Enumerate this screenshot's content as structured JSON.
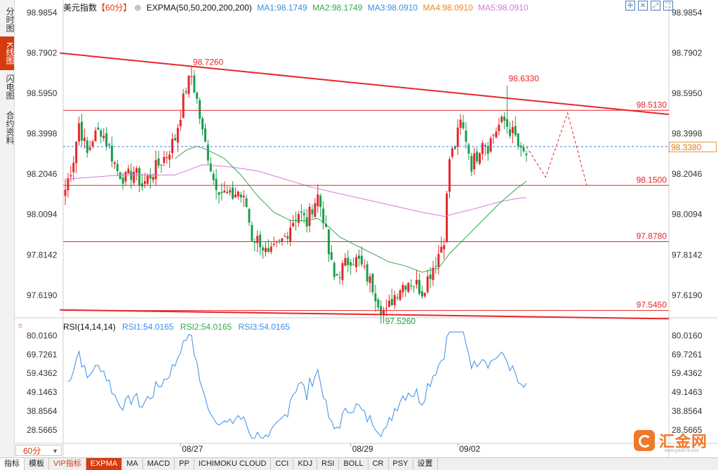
{
  "side_tabs": [
    "分时图",
    "K线图",
    "闪电图",
    "合约资料"
  ],
  "active_side_tab": 1,
  "header": {
    "symbol": "美元指数",
    "period": "【60分】",
    "indicator": "EXPMA(50,50,200,200,200)",
    "ma1": "MA1:98.1749",
    "ma2": "MA2:98.1749",
    "ma3": "MA3:98.0910",
    "ma4": "MA4:98.0910",
    "ma5": "MA5:98.0910"
  },
  "rsi_header": {
    "name": "RSI(14,14,14)",
    "rsi1": "RSI1:54.0165",
    "rsi2": "RSI2:54.0165",
    "rsi3": "RSI3:54.0165"
  },
  "period_selector": "60分",
  "current_price_label": "98.3380",
  "bottom_tabs": [
    "指标",
    "模板",
    "VIP指标",
    "EXPMA",
    "MA",
    "MACD",
    "PP",
    "ICHIMOKU CLOUD",
    "CCI",
    "KDJ",
    "RSI",
    "BOLL",
    "CR",
    "PSY",
    "设置"
  ],
  "active_bottom_tab": 3,
  "logo_text": "汇金网",
  "logo_sub": "www.gold678.com",
  "colors": {
    "up": "#e8262a",
    "down": "#1b9e4b",
    "ema_fast": "#35a853",
    "ema_slow": "#d67ad6",
    "rsi": "#3a8ee6",
    "trend": "#e8262a",
    "dash": "#3a7be0",
    "accent": "#d83a0f"
  },
  "chart_data": [
    {
      "type": "candlestick",
      "title": "美元指数 60分",
      "y_ticks": [
        "98.9854",
        "98.7902",
        "98.5950",
        "98.3998",
        "98.2046",
        "98.0094",
        "97.8142",
        "97.6190"
      ],
      "ylim": [
        97.52,
        98.9854
      ],
      "x_labels": [
        "08/27",
        "08/29",
        "09/02"
      ],
      "hlines": [
        {
          "value": 98.513,
          "label": "98.5130"
        },
        {
          "value": 98.15,
          "label": "98.1500"
        },
        {
          "value": 97.878,
          "label": "97.8780"
        },
        {
          "value": 97.545,
          "label": "97.5450"
        }
      ],
      "annotations": [
        {
          "label": "98.7260",
          "value": 98.726
        },
        {
          "label": "98.6330",
          "value": 98.633
        },
        {
          "label": "97.5260",
          "value": 97.526
        }
      ],
      "current_price": 98.338,
      "waypoints": [
        [
          0,
          98.13
        ],
        [
          3,
          98.28
        ],
        [
          5,
          98.45
        ],
        [
          8,
          98.3
        ],
        [
          10,
          98.38
        ],
        [
          13,
          98.42
        ],
        [
          16,
          98.33
        ],
        [
          19,
          98.22
        ],
        [
          22,
          98.18
        ],
        [
          25,
          98.22
        ],
        [
          28,
          98.15
        ],
        [
          31,
          98.2
        ],
        [
          34,
          98.25
        ],
        [
          37,
          98.3
        ],
        [
          40,
          98.38
        ],
        [
          42,
          98.5
        ],
        [
          44,
          98.62
        ],
        [
          46,
          98.68
        ],
        [
          48,
          98.56
        ],
        [
          50,
          98.4
        ],
        [
          52,
          98.3
        ],
        [
          54,
          98.18
        ],
        [
          57,
          98.12
        ],
        [
          60,
          98.09
        ],
        [
          63,
          98.12
        ],
        [
          66,
          98.05
        ],
        [
          68,
          97.9
        ],
        [
          71,
          97.88
        ],
        [
          74,
          97.8
        ],
        [
          77,
          97.85
        ],
        [
          80,
          97.9
        ],
        [
          82,
          97.96
        ],
        [
          85,
          98.02
        ],
        [
          88,
          97.97
        ],
        [
          90,
          98.05
        ],
        [
          92,
          98.1
        ],
        [
          94,
          98.0
        ],
        [
          96,
          97.82
        ],
        [
          98,
          97.7
        ],
        [
          101,
          97.75
        ],
        [
          104,
          97.8
        ],
        [
          107,
          97.78
        ],
        [
          109,
          97.73
        ],
        [
          112,
          97.66
        ],
        [
          115,
          97.56
        ],
        [
          117,
          97.53
        ],
        [
          119,
          97.6
        ],
        [
          122,
          97.66
        ],
        [
          125,
          97.69
        ],
        [
          128,
          97.67
        ],
        [
          130,
          97.64
        ],
        [
          132,
          97.7
        ],
        [
          134,
          97.76
        ],
        [
          136,
          97.82
        ],
        [
          138,
          97.9
        ],
        [
          140,
          98.28
        ],
        [
          142,
          98.34
        ],
        [
          144,
          98.45
        ],
        [
          146,
          98.38
        ],
        [
          148,
          98.25
        ],
        [
          150,
          98.3
        ],
        [
          152,
          98.38
        ],
        [
          154,
          98.34
        ],
        [
          156,
          98.4
        ],
        [
          158,
          98.44
        ],
        [
          160,
          98.46
        ],
        [
          162,
          98.42
        ],
        [
          164,
          98.38
        ],
        [
          166,
          98.3
        ],
        [
          167,
          98.3
        ],
        [
          168,
          98.3
        ]
      ],
      "candle_count": 169,
      "ema_fast_points": [
        [
          40,
          98.28
        ],
        [
          44,
          98.32
        ],
        [
          48,
          98.34
        ],
        [
          52,
          98.32
        ],
        [
          58,
          98.28
        ],
        [
          64,
          98.2
        ],
        [
          70,
          98.1
        ],
        [
          76,
          98.02
        ],
        [
          82,
          97.98
        ],
        [
          88,
          97.98
        ],
        [
          92,
          97.99
        ],
        [
          96,
          97.95
        ],
        [
          100,
          97.9
        ],
        [
          106,
          97.86
        ],
        [
          112,
          97.82
        ],
        [
          118,
          97.78
        ],
        [
          124,
          97.76
        ],
        [
          130,
          97.73
        ],
        [
          136,
          97.75
        ],
        [
          140,
          97.82
        ],
        [
          146,
          97.9
        ],
        [
          152,
          97.98
        ],
        [
          158,
          98.06
        ],
        [
          164,
          98.13
        ],
        [
          168,
          98.17
        ]
      ],
      "ema_slow_points": [
        [
          0,
          98.18
        ],
        [
          20,
          98.2
        ],
        [
          40,
          98.2
        ],
        [
          46,
          98.23
        ],
        [
          50,
          98.25
        ],
        [
          60,
          98.24
        ],
        [
          70,
          98.22
        ],
        [
          80,
          98.18
        ],
        [
          90,
          98.14
        ],
        [
          100,
          98.11
        ],
        [
          110,
          98.08
        ],
        [
          120,
          98.05
        ],
        [
          130,
          98.02
        ],
        [
          138,
          98.0
        ],
        [
          144,
          98.02
        ],
        [
          150,
          98.04
        ],
        [
          158,
          98.07
        ],
        [
          166,
          98.09
        ],
        [
          168,
          98.09
        ]
      ],
      "trendline_upper": [
        [
          -2,
          98.79
        ],
        [
          220,
          98.493
        ]
      ],
      "trendline_lower": [
        [
          -2,
          97.548
        ],
        [
          220,
          97.505
        ]
      ],
      "projection": [
        [
          168,
          98.338
        ],
        [
          175,
          98.19
        ],
        [
          183,
          98.5
        ],
        [
          190,
          98.15
        ]
      ]
    },
    {
      "type": "line",
      "title": "RSI(14,14,14)",
      "y_ticks": [
        "80.0160",
        "69.7261",
        "59.4362",
        "49.1463",
        "38.8564",
        "28.5665"
      ],
      "ylim": [
        22.0,
        84.0
      ],
      "last_value": 54.0165
    }
  ]
}
